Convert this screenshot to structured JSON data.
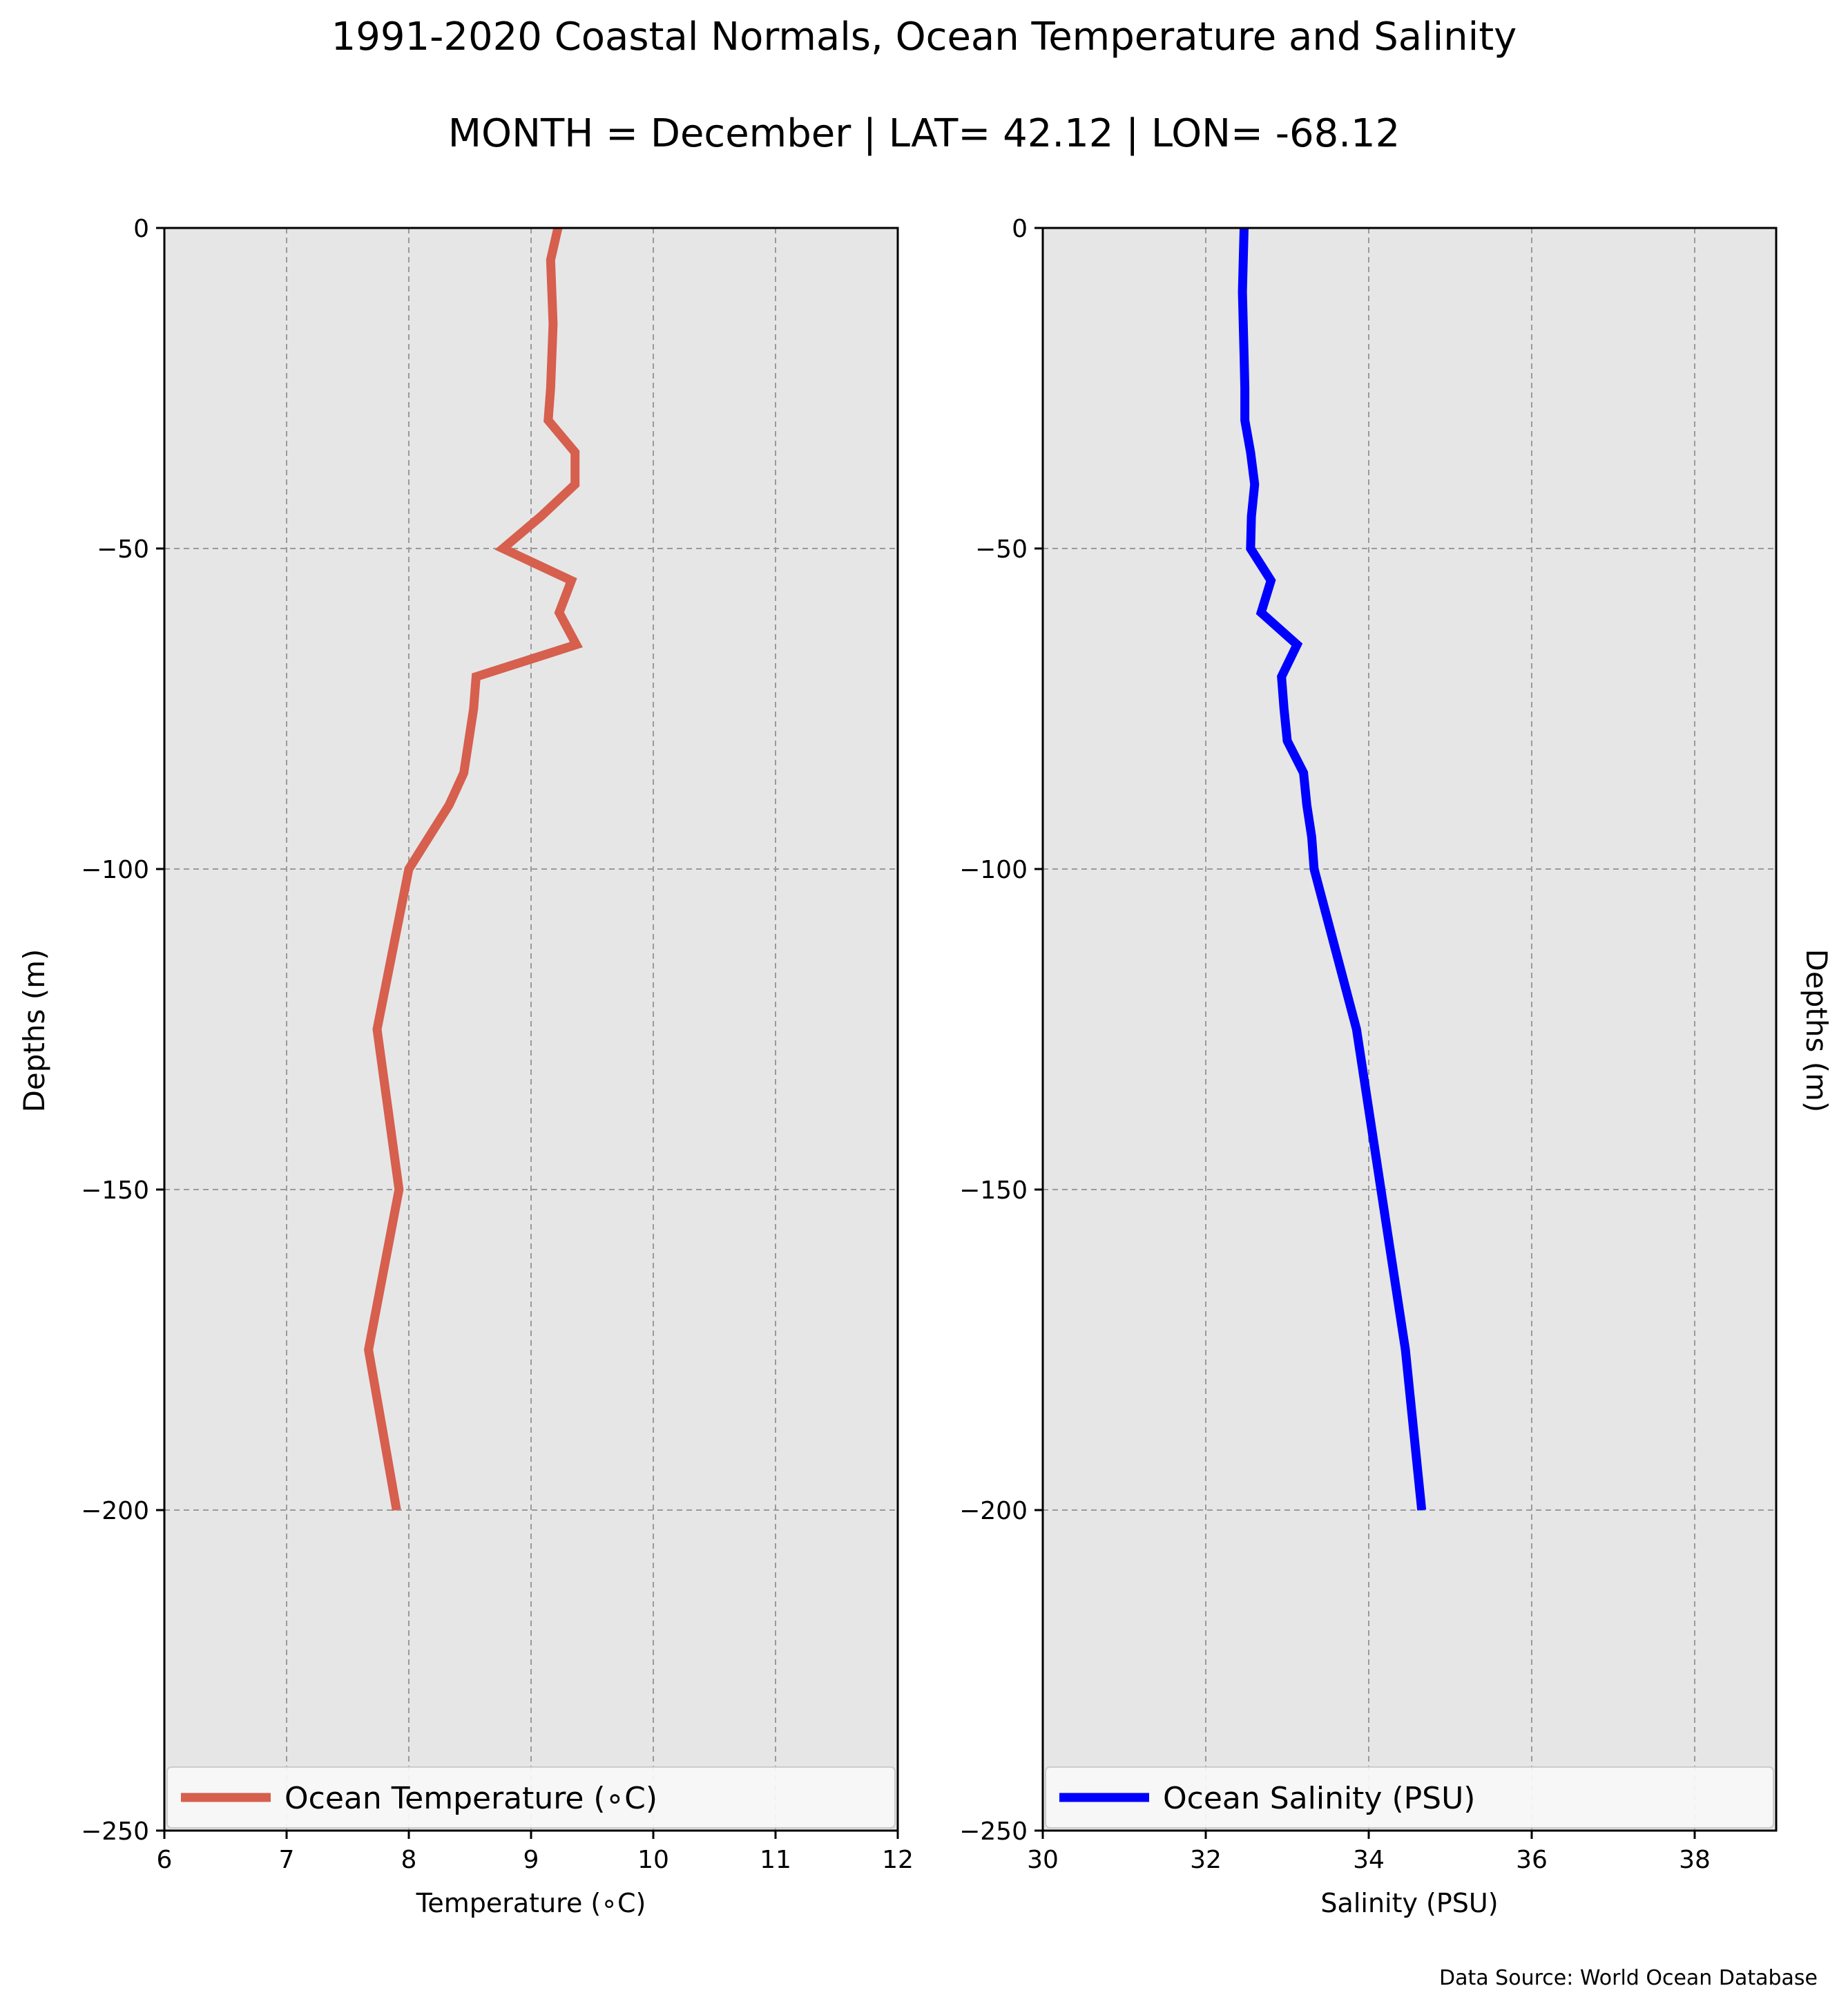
{
  "title": "1991-2020 Coastal Normals, Ocean Temperature and Salinity",
  "subtitle": "MONTH = December | LAT= 42.12 | LON= -68.12",
  "source": "Data Source: World Ocean Database",
  "colors": {
    "background": "#e6e6e6",
    "temperature": "#d65f4e",
    "salinity": "#0000ff",
    "grid": "#9a9a9a"
  },
  "chart_data": [
    {
      "type": "line",
      "orientation": "profile (x = value, y = depth)",
      "xlabel": "Temperature (∘C)",
      "ylabel": "Depths (m)",
      "xlim": [
        6,
        12
      ],
      "ylim": [
        -250,
        0
      ],
      "xticks": [
        6,
        7,
        8,
        9,
        10,
        11,
        12
      ],
      "xtick_labels": [
        "6",
        "7",
        "8",
        "9",
        "10",
        "11",
        "12"
      ],
      "yticks": [
        0,
        -50,
        -100,
        -150,
        -200,
        -250
      ],
      "ytick_labels": [
        "0",
        "−50",
        "−100",
        "−150",
        "−200",
        "−250"
      ],
      "grid": true,
      "legend_position": "lower-center",
      "series": [
        {
          "name": "Ocean Temperature (∘C)",
          "color": "#d65f4e",
          "x": [
            9.22,
            9.16,
            9.17,
            9.18,
            9.17,
            9.16,
            9.14,
            9.36,
            9.36,
            9.08,
            8.77,
            9.33,
            9.23,
            9.37,
            8.55,
            8.53,
            8.45,
            8.33,
            8.0,
            7.74,
            7.92,
            7.67,
            7.9
          ],
          "y": [
            0,
            -5,
            -10,
            -15,
            -20,
            -25,
            -30,
            -35,
            -40,
            -45,
            -50,
            -55,
            -60,
            -65,
            -70,
            -75,
            -85,
            -90,
            -100,
            -125,
            -150,
            -175,
            -200
          ]
        }
      ]
    },
    {
      "type": "line",
      "orientation": "profile (x = value, y = depth)",
      "xlabel": "Salinity (PSU)",
      "ylabel": "Depths (m)",
      "xlim": [
        30,
        39
      ],
      "ylim": [
        -250,
        0
      ],
      "xticks": [
        30,
        32,
        34,
        36,
        38
      ],
      "xtick_labels": [
        "30",
        "32",
        "34",
        "36",
        "38"
      ],
      "yticks": [
        0,
        -50,
        -100,
        -150,
        -200,
        -250
      ],
      "ytick_labels": [
        "0",
        "−50",
        "−100",
        "−150",
        "−200",
        "−250"
      ],
      "grid": true,
      "legend_position": "lower-center",
      "series": [
        {
          "name": "Ocean Salinity (PSU)",
          "color": "#0000ff",
          "x": [
            32.47,
            32.46,
            32.45,
            32.46,
            32.47,
            32.48,
            32.48,
            32.55,
            32.6,
            32.56,
            32.55,
            32.8,
            32.68,
            33.12,
            32.93,
            32.96,
            33.0,
            33.2,
            33.24,
            33.3,
            33.33,
            33.85,
            34.15,
            34.45,
            34.65
          ],
          "y": [
            0,
            -5,
            -10,
            -15,
            -20,
            -25,
            -30,
            -35,
            -40,
            -45,
            -50,
            -55,
            -60,
            -65,
            -70,
            -75,
            -80,
            -85,
            -90,
            -95,
            -100,
            -125,
            -150,
            -175,
            -200
          ]
        }
      ]
    }
  ]
}
